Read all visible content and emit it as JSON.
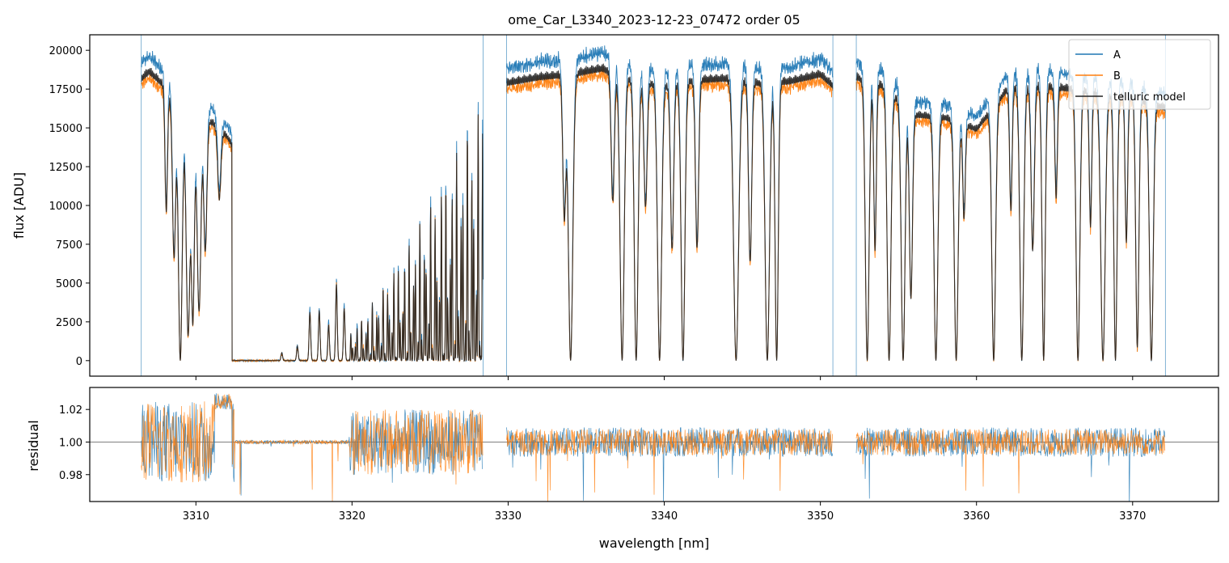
{
  "chart_data": [
    {
      "type": "line",
      "panel": "flux",
      "title": "ome_Car_L3340_2023-12-23_07472  order 05",
      "xlabel": "",
      "ylabel": "flux [ADU]",
      "xlim": [
        3303.2,
        3375.5
      ],
      "ylim": [
        -1000,
        21000
      ],
      "yticks": [
        0,
        2500,
        5000,
        7500,
        10000,
        12500,
        15000,
        17500,
        20000
      ],
      "ytick_labels": [
        "0",
        "2500",
        "5000",
        "7500",
        "10000",
        "12500",
        "15000",
        "17500",
        "20000"
      ],
      "xticks": [
        3310,
        3320,
        3330,
        3340,
        3350,
        3360,
        3370
      ],
      "legend_position": "top-right",
      "segments": [
        {
          "x_range": [
            3306.5,
            3328.4
          ],
          "continuum_x": [
            3306.5,
            3307,
            3308,
            3309,
            3310,
            3311,
            3312,
            3312.5
          ],
          "continuum_y": [
            19500,
            20000,
            19000,
            17000,
            17000,
            16500,
            15500,
            14500
          ],
          "absorption_x": [
            3308.1,
            3308.6,
            3309.0,
            3309.5,
            3309.8,
            3310.2,
            3310.6,
            3311.5
          ],
          "absorption_depth": [
            0.45,
            0.6,
            1.0,
            0.9,
            0.85,
            0.8,
            0.55,
            0.3
          ],
          "absorption_width": [
            0.08,
            0.1,
            0.12,
            0.12,
            0.1,
            0.12,
            0.1,
            0.1
          ],
          "zero_band": [
            3312.3,
            3319.8
          ]
        },
        {
          "x_range": [
            3329.9,
            3350.8
          ],
          "continuum_x": [
            3329.9,
            3332,
            3334,
            3336,
            3338,
            3340,
            3342,
            3344,
            3346,
            3348,
            3350,
            3350.8
          ],
          "continuum_y": [
            19200,
            19600,
            19800,
            20200,
            19400,
            19000,
            19400,
            19500,
            19200,
            19300,
            19800,
            19000
          ],
          "absorption_x": [
            3333.6,
            3334.0,
            3336.7,
            3337.3,
            3338.2,
            3338.8,
            3339.7,
            3340.5,
            3341.2,
            3342.1,
            3344.6,
            3345.5,
            3346.6,
            3347.2
          ],
          "absorption_depth": [
            0.5,
            1.0,
            0.45,
            1.0,
            1.0,
            0.45,
            1.0,
            0.6,
            1.0,
            0.6,
            1.0,
            0.65,
            1.0,
            1.0
          ],
          "absorption_width": [
            0.1,
            0.14,
            0.1,
            0.13,
            0.12,
            0.1,
            0.13,
            0.1,
            0.12,
            0.1,
            0.16,
            0.1,
            0.14,
            0.1
          ]
        },
        {
          "x_range": [
            3352.3,
            3372.1
          ],
          "continuum_x": [
            3352.3,
            3354,
            3356,
            3358,
            3360,
            3362,
            3364,
            3366,
            3368,
            3370,
            3372
          ],
          "continuum_y": [
            19600,
            19000,
            17000,
            16800,
            16000,
            18800,
            19000,
            18800,
            18500,
            18200,
            17500
          ],
          "absorption_x": [
            3353.0,
            3353.5,
            3354.4,
            3355.3,
            3355.8,
            3357.4,
            3358.7,
            3359.2,
            3361.1,
            3362.2,
            3362.9,
            3363.6,
            3364.3,
            3365.1,
            3366.5,
            3367.3,
            3368.1,
            3368.9,
            3369.6,
            3370.3,
            3371.2
          ],
          "absorption_depth": [
            1.0,
            0.6,
            1.0,
            1.0,
            0.75,
            1.0,
            1.0,
            0.4,
            1.0,
            0.45,
            1.0,
            0.6,
            1.0,
            0.4,
            1.0,
            0.5,
            1.0,
            1.0,
            0.55,
            0.95,
            1.0
          ],
          "absorption_width": [
            0.12,
            0.08,
            0.12,
            0.12,
            0.1,
            0.12,
            0.12,
            0.08,
            0.12,
            0.08,
            0.12,
            0.1,
            0.1,
            0.08,
            0.12,
            0.08,
            0.14,
            0.1,
            0.08,
            0.1,
            0.12
          ]
        }
      ],
      "series": [
        {
          "name": "A",
          "color": "#1f77b4",
          "scale": 1.0
        },
        {
          "name": "B",
          "color": "#ff7f0e",
          "scale": 0.93
        },
        {
          "name": "telluric model",
          "color": "#222222",
          "scale": 0.95
        }
      ]
    },
    {
      "type": "line",
      "panel": "residual",
      "xlabel": "wavelength [nm]",
      "ylabel": "residual",
      "xlim": [
        3303.2,
        3375.5
      ],
      "ylim": [
        0.9635,
        1.0335
      ],
      "yticks": [
        0.98,
        1.0,
        1.02
      ],
      "ytick_labels": [
        "0.98",
        "1.00",
        "1.02"
      ],
      "xticks": [
        3310,
        3320,
        3330,
        3340,
        3350,
        3360,
        3370
      ],
      "xtick_labels": [
        "3310",
        "3320",
        "3330",
        "3340",
        "3350",
        "3360",
        "3370"
      ],
      "reference_line": 1.0,
      "series": [
        {
          "name": "A",
          "color": "#1f77b4",
          "noise": 0.009
        },
        {
          "name": "B",
          "color": "#ff7f0e",
          "noise": 0.008
        }
      ]
    }
  ]
}
